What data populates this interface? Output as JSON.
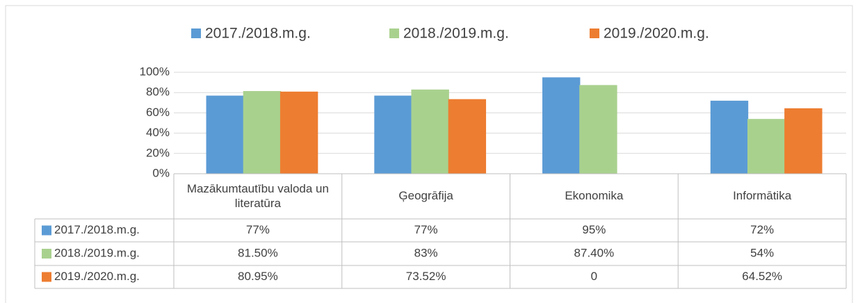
{
  "chart_data": {
    "type": "bar",
    "categories": [
      "Mazākumtautību valoda un literatūra",
      "Ģeogrāfija",
      "Ekonomika",
      "Informātika"
    ],
    "series": [
      {
        "name": "2017./2018.m.g.",
        "color": "#5b9bd5",
        "values": [
          77,
          77,
          95,
          72
        ],
        "value_labels": [
          "77%",
          "77%",
          "95%",
          "72%"
        ]
      },
      {
        "name": "2018./2019.m.g.",
        "color": "#a9d18e",
        "values": [
          81.5,
          83,
          87.4,
          54
        ],
        "value_labels": [
          "81.50%",
          "83%",
          "87.40%",
          "54%"
        ]
      },
      {
        "name": "2019./2020.m.g.",
        "color": "#ed7d31",
        "values": [
          80.95,
          73.52,
          0,
          64.52
        ],
        "value_labels": [
          "80.95%",
          "73.52%",
          "0",
          "64.52%"
        ]
      }
    ],
    "ylim": [
      0,
      100
    ],
    "yticks": [
      {
        "value": 0,
        "label": "0%"
      },
      {
        "value": 20,
        "label": "20%"
      },
      {
        "value": 40,
        "label": "40%"
      },
      {
        "value": 60,
        "label": "60%"
      },
      {
        "value": 80,
        "label": "80%"
      },
      {
        "value": 100,
        "label": "100%"
      }
    ],
    "grid": true,
    "legend": "top"
  }
}
